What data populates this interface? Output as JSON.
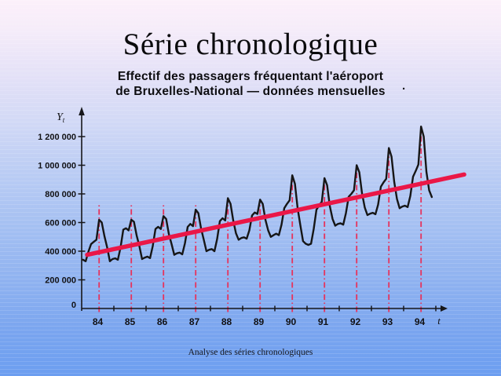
{
  "slide": {
    "title": "Série chronologique",
    "subtitle_line1": "Effectif des passagers fréquentant l'aéroport",
    "subtitle_line2": "de Bruxelles-National — données mensuelles",
    "stray_period": ".",
    "footer": "Analyse des séries chronologiques"
  },
  "colors": {
    "trend_red": "#ea1747",
    "peak_line_red": "#e6335c",
    "series_black": "#161616",
    "axis_black": "#17171a",
    "label_black": "#111114"
  },
  "chart_data": {
    "type": "line",
    "title": "Effectif des passagers fréquentant l'aéroport de Bruxelles-National — données mensuelles",
    "xlabel": "t",
    "ylabel": "Yt",
    "y_axis_arrow": true,
    "x_axis_arrow": true,
    "grid": false,
    "legend": "none",
    "ylim": [
      0,
      1300000
    ],
    "x_years": [
      "84",
      "85",
      "86",
      "87",
      "88",
      "89",
      "90",
      "91",
      "92",
      "93",
      "94"
    ],
    "y_ticks": [
      {
        "value": 0,
        "label": "0"
      },
      {
        "value": 200000,
        "label": "200 000"
      },
      {
        "value": 400000,
        "label": "400 000"
      },
      {
        "value": 600000,
        "label": "600 000"
      },
      {
        "value": 800000,
        "label": "800 000"
      },
      {
        "value": 1000000,
        "label": "1 000 000"
      },
      {
        "value": 1200000,
        "label": "1 200 000"
      }
    ],
    "monthly_series": {
      "name": "Passagers mensuels Bruxelles-National",
      "start": "janvier 84",
      "by_year": [
        {
          "year": "84",
          "values": [
            340000,
            330000,
            395000,
            450000,
            465000,
            480000,
            620000,
            600000,
            505000,
            425000,
            330000,
            345000
          ]
        },
        {
          "year": "85",
          "values": [
            350000,
            340000,
            425000,
            550000,
            560000,
            545000,
            620000,
            605000,
            510000,
            435000,
            345000,
            355000
          ]
        },
        {
          "year": "86",
          "values": [
            362000,
            352000,
            435000,
            555000,
            570000,
            555000,
            645000,
            625000,
            520000,
            450000,
            375000,
            385000
          ]
        },
        {
          "year": "87",
          "values": [
            390000,
            378000,
            455000,
            570000,
            590000,
            575000,
            690000,
            665000,
            560000,
            480000,
            400000,
            410000
          ]
        },
        {
          "year": "88",
          "values": [
            415000,
            400000,
            485000,
            610000,
            630000,
            615000,
            770000,
            730000,
            615000,
            525000,
            480000,
            492000
          ]
        },
        {
          "year": "89",
          "values": [
            497000,
            487000,
            545000,
            650000,
            670000,
            660000,
            760000,
            730000,
            620000,
            545000,
            500000,
            512000
          ]
        },
        {
          "year": "90",
          "values": [
            522000,
            512000,
            585000,
            700000,
            730000,
            755000,
            930000,
            870000,
            700000,
            580000,
            470000,
            452000
          ]
        },
        {
          "year": "91",
          "values": [
            444000,
            452000,
            555000,
            690000,
            720000,
            745000,
            910000,
            860000,
            715000,
            625000,
            578000,
            590000
          ]
        },
        {
          "year": "92",
          "values": [
            595000,
            585000,
            665000,
            780000,
            800000,
            825000,
            1000000,
            950000,
            805000,
            705000,
            652000,
            662000
          ]
        },
        {
          "year": "93",
          "values": [
            668000,
            658000,
            725000,
            850000,
            880000,
            905000,
            1120000,
            1060000,
            885000,
            765000,
            700000,
            712000
          ]
        },
        {
          "year": "94",
          "values": [
            718000,
            708000,
            785000,
            920000,
            960000,
            1005000,
            1270000,
            1200000,
            955000,
            825000,
            778000
          ]
        }
      ]
    },
    "trend_line": {
      "style": "thick solid red",
      "from": {
        "t": 84.17,
        "value": 375000
      },
      "to": {
        "t": 95.88,
        "value": 935000
      }
    },
    "seasonal_peak_markers": {
      "style": "red dash-dot vertical lines at the July peak of each year",
      "years": [
        "84",
        "85",
        "86",
        "87",
        "88",
        "89",
        "90",
        "91",
        "92",
        "93",
        "94"
      ]
    }
  }
}
